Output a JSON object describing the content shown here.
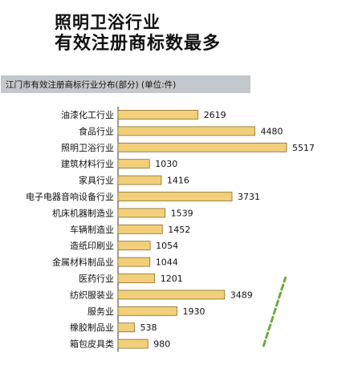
{
  "headline": {
    "line1": "照明卫浴行业",
    "line2": "有效注册商标数最多"
  },
  "subtitle": "江门市有效注册商标行业分布(部分)   (单位:件)",
  "colors": {
    "bar_fill": "#f2cf7a",
    "bar_stroke": "#8a6d2a",
    "subtitle_bg": "#c3c8cd",
    "deco_green": "#6cab3f"
  },
  "chart_data": {
    "type": "bar",
    "orientation": "horizontal",
    "title": "江门市有效注册商标行业分布(部分)",
    "unit": "件",
    "categories": [
      "油漆化工行业",
      "食品行业",
      "照明卫浴行业",
      "建筑材料行业",
      "家具行业",
      "电子电器音响设备行业",
      "机床机器制造业",
      "车辆制造业",
      "造纸印刷业",
      "金属材料制品业",
      "医药行业",
      "纺织服装业",
      "服务业",
      "橡胶制品业",
      "箱包皮具类"
    ],
    "values": [
      2619,
      4480,
      5517,
      1030,
      1416,
      3731,
      1539,
      1452,
      1054,
      1044,
      1201,
      3489,
      1930,
      538,
      980
    ],
    "grid": false,
    "legend": "none"
  }
}
